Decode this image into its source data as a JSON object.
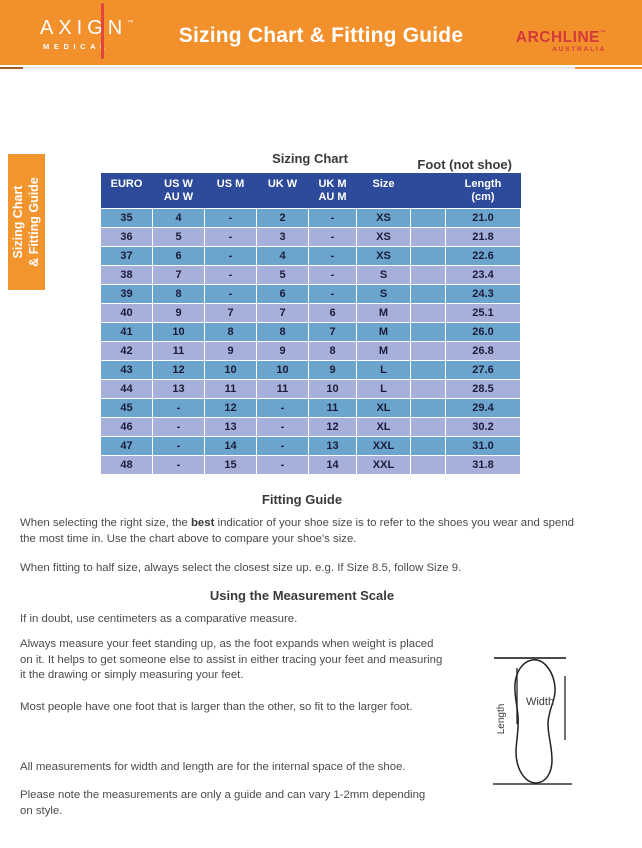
{
  "header": {
    "axign_logo": {
      "brand": "AXIGN",
      "tm": "™",
      "sub": "MEDICAL"
    },
    "title": "Sizing Chart & Fitting Guide",
    "archline_logo": {
      "brand": "ARCHLINE",
      "tm": "™",
      "sub": "AUSTRALIA"
    }
  },
  "side_tab": {
    "line1": "Sizing Chart",
    "line2": "& Fitting Guide"
  },
  "sizing_chart": {
    "title": "Sizing Chart",
    "foot_label": "Foot (not shoe)",
    "headers": [
      "EURO",
      "US W\nAU W",
      "US M",
      "UK W",
      "UK M\nAU M",
      "Size",
      "Length\n(cm)"
    ],
    "rows": [
      [
        "35",
        "4",
        "-",
        "2",
        "-",
        "XS",
        "21.0"
      ],
      [
        "36",
        "5",
        "-",
        "3",
        "-",
        "XS",
        "21.8"
      ],
      [
        "37",
        "6",
        "-",
        "4",
        "-",
        "XS",
        "22.6"
      ],
      [
        "38",
        "7",
        "-",
        "5",
        "-",
        "S",
        "23.4"
      ],
      [
        "39",
        "8",
        "-",
        "6",
        "-",
        "S",
        "24.3"
      ],
      [
        "40",
        "9",
        "7",
        "7",
        "6",
        "M",
        "25.1"
      ],
      [
        "41",
        "10",
        "8",
        "8",
        "7",
        "M",
        "26.0"
      ],
      [
        "42",
        "11",
        "9",
        "9",
        "8",
        "M",
        "26.8"
      ],
      [
        "43",
        "12",
        "10",
        "10",
        "9",
        "L",
        "27.6"
      ],
      [
        "44",
        "13",
        "11",
        "11",
        "10",
        "L",
        "28.5"
      ],
      [
        "45",
        "-",
        "12",
        "-",
        "11",
        "XL",
        "29.4"
      ],
      [
        "46",
        "-",
        "13",
        "-",
        "12",
        "XL",
        "30.2"
      ],
      [
        "47",
        "-",
        "14",
        "-",
        "13",
        "XXL",
        "31.0"
      ],
      [
        "48",
        "-",
        "15",
        "-",
        "14",
        "XXL",
        "31.8"
      ]
    ]
  },
  "fitting_guide": {
    "title": "Fitting Guide",
    "p1_pre": "When selecting the right size, the ",
    "p1_bold": "best",
    "p1_post": " indicatior of your shoe size is to refer to the shoes you wear and spend\nthe most time in. Use the chart above to compare your shoe's size.",
    "p2": "When fitting to half size, always select the closest size up. e.g. If Size 8.5, follow Size 9."
  },
  "measurement_scale": {
    "title": "Using the Measurement Scale",
    "p1": "If in doubt, use centimeters as a comparative measure.",
    "p2": "Always measure your feet standing up, as the foot expands when weight is placed\non it. It helps to get someone else to assist in either tracing your feet and measuring\nit the drawing or simply measuring your feet.",
    "p3": "Most people have one foot that is larger than the other, so fit to the larger foot.",
    "p4": "All measurements for width and length are for the internal space of the shoe.",
    "p5": "Please note the measurements are only a guide and can vary 1-2mm depending\non style."
  },
  "foot_diagram": {
    "width_label": "Width",
    "length_label": "Length"
  },
  "colors": {
    "orange": "#F2912C",
    "header_navy": "#2E4B9B",
    "row_blue": "#6BA5CD",
    "row_lavender": "#A7AFDB",
    "brand_red": "#D23A3A",
    "body_text": "#4B4B4B"
  }
}
